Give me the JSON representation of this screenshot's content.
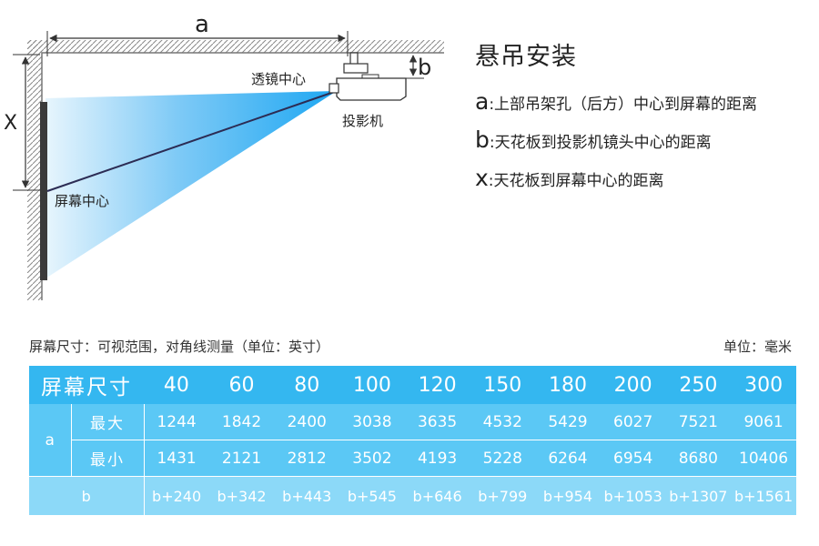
{
  "diagram": {
    "label_a": "a",
    "label_b": "b",
    "label_x": "X",
    "lens_center": "透镜中心",
    "projector": "投影机",
    "screen_center": "屏幕中心"
  },
  "legend": {
    "title": "悬吊安装",
    "items": [
      {
        "key": "a",
        "text": ":上部吊架孔（后方）中心到屏幕的距离"
      },
      {
        "key": "b",
        "text": ":天花板到投影机镜头中心的距离"
      },
      {
        "key": "x",
        "text": ":天花板到屏幕中心的距离"
      }
    ]
  },
  "table": {
    "caption_left": "屏幕尺寸：可视范围，对角线测量（单位：英寸）",
    "caption_right": "单位：毫米",
    "header_label": "屏幕尺寸",
    "sizes": [
      "40",
      "60",
      "80",
      "100",
      "120",
      "150",
      "180",
      "200",
      "250",
      "300"
    ],
    "row_a_label": "a",
    "max_label": "最大",
    "min_label": "最小",
    "max_values": [
      "1244",
      "1842",
      "2400",
      "3038",
      "3635",
      "4532",
      "5429",
      "6027",
      "7521",
      "9061"
    ],
    "min_values": [
      "1431",
      "2121",
      "2812",
      "3502",
      "4193",
      "5228",
      "6264",
      "6954",
      "8680",
      "10406"
    ],
    "row_b_label": "b",
    "b_values": [
      "b+240",
      "b+342",
      "b+443",
      "b+545",
      "b+646",
      "b+799",
      "b+954",
      "b+1053",
      "b+1307",
      "b+1561"
    ]
  }
}
